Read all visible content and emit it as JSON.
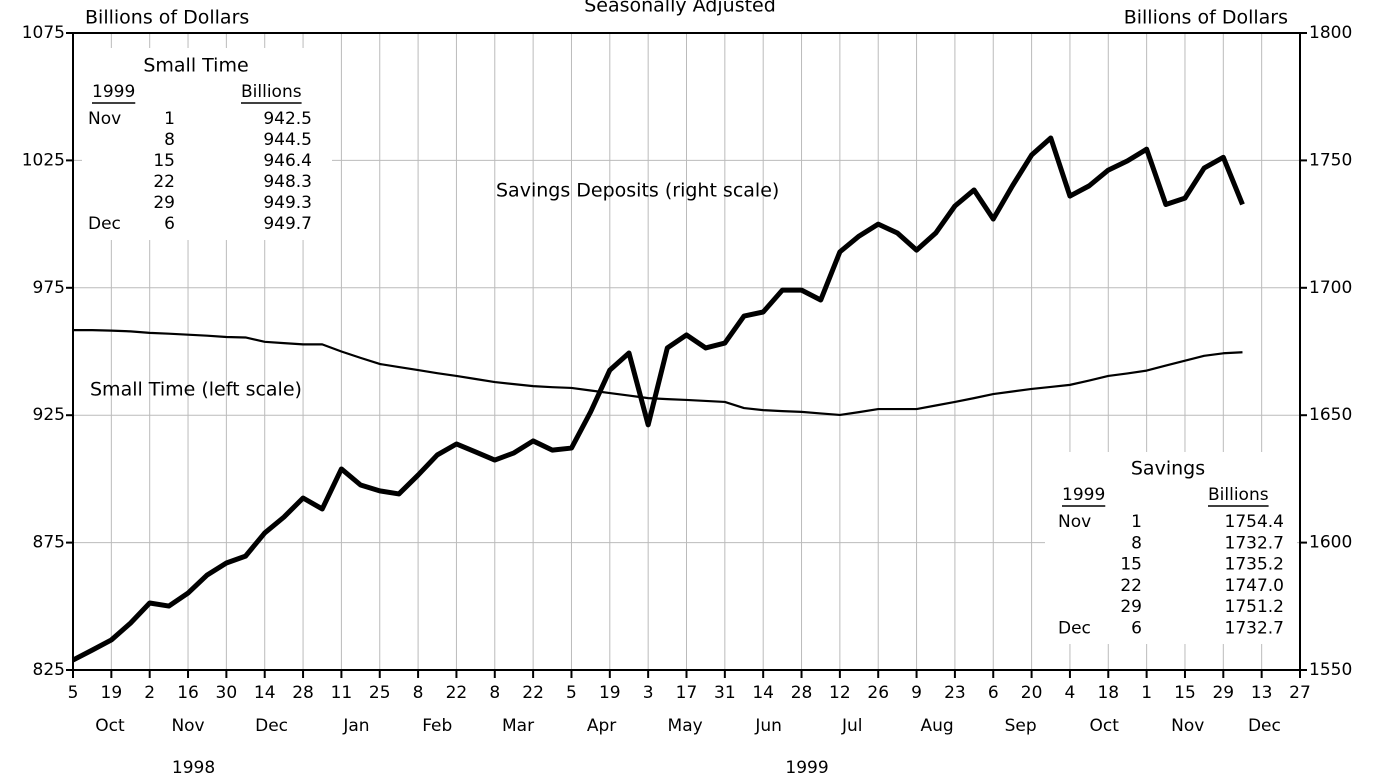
{
  "chart_data": {
    "type": "line",
    "subtitle": "Seasonally Adjusted",
    "y_label": "Billions of Dollars",
    "y2_label": "Billions of Dollars",
    "annotations": [
      "Savings Deposits (right scale)",
      "Small Time (left scale)"
    ],
    "xlim": [
      "1998-10-05",
      "1999-12-27"
    ],
    "xticks": [
      {
        "value": "1998-10-05",
        "label": "5"
      },
      {
        "value": "1998-10-19",
        "label": "19"
      },
      {
        "value": "1998-11-02",
        "label": "2"
      },
      {
        "value": "1998-11-16",
        "label": "16"
      },
      {
        "value": "1998-11-30",
        "label": "30"
      },
      {
        "value": "1998-12-14",
        "label": "14"
      },
      {
        "value": "1998-12-28",
        "label": "28"
      },
      {
        "value": "1999-01-11",
        "label": "11"
      },
      {
        "value": "1999-01-25",
        "label": "25"
      },
      {
        "value": "1999-02-08",
        "label": "8"
      },
      {
        "value": "1999-02-22",
        "label": "22"
      },
      {
        "value": "1999-03-08",
        "label": "8"
      },
      {
        "value": "1999-03-22",
        "label": "22"
      },
      {
        "value": "1999-04-05",
        "label": "5"
      },
      {
        "value": "1999-04-19",
        "label": "19"
      },
      {
        "value": "1999-05-03",
        "label": "3"
      },
      {
        "value": "1999-05-17",
        "label": "17"
      },
      {
        "value": "1999-05-31",
        "label": "31"
      },
      {
        "value": "1999-06-14",
        "label": "14"
      },
      {
        "value": "1999-06-28",
        "label": "28"
      },
      {
        "value": "1999-07-12",
        "label": "12"
      },
      {
        "value": "1999-07-26",
        "label": "26"
      },
      {
        "value": "1999-08-09",
        "label": "9"
      },
      {
        "value": "1999-08-23",
        "label": "23"
      },
      {
        "value": "1999-09-06",
        "label": "6"
      },
      {
        "value": "1999-09-20",
        "label": "20"
      },
      {
        "value": "1999-10-04",
        "label": "4"
      },
      {
        "value": "1999-10-18",
        "label": "18"
      },
      {
        "value": "1999-11-01",
        "label": "1"
      },
      {
        "value": "1999-11-15",
        "label": "15"
      },
      {
        "value": "1999-11-29",
        "label": "29"
      },
      {
        "value": "1999-12-13",
        "label": "13"
      },
      {
        "value": "1999-12-27",
        "label": "27"
      }
    ],
    "x_months": [
      {
        "value": "1998-10",
        "label": "Oct"
      },
      {
        "value": "1998-11",
        "label": "Nov"
      },
      {
        "value": "1998-12",
        "label": "Dec"
      },
      {
        "value": "1999-01",
        "label": "Jan"
      },
      {
        "value": "1999-02",
        "label": "Feb"
      },
      {
        "value": "1999-03",
        "label": "Mar"
      },
      {
        "value": "1999-04",
        "label": "Apr"
      },
      {
        "value": "1999-05",
        "label": "May"
      },
      {
        "value": "1999-06",
        "label": "Jun"
      },
      {
        "value": "1999-07",
        "label": "Jul"
      },
      {
        "value": "1999-08",
        "label": "Aug"
      },
      {
        "value": "1999-09",
        "label": "Sep"
      },
      {
        "value": "1999-10",
        "label": "Oct"
      },
      {
        "value": "1999-11",
        "label": "Nov"
      },
      {
        "value": "1999-12",
        "label": "Dec"
      }
    ],
    "x_years": [
      1998,
      1999
    ],
    "ylim": [
      825,
      1075
    ],
    "yticks": [
      825,
      875,
      925,
      975,
      1025,
      1075
    ],
    "y2lim": [
      1550,
      1800
    ],
    "y2ticks": [
      1550,
      1600,
      1650,
      1700,
      1750,
      1800
    ],
    "grid": true,
    "x": [
      "1998-10-05",
      "1998-10-12",
      "1998-10-19",
      "1998-10-26",
      "1998-11-02",
      "1998-11-09",
      "1998-11-16",
      "1998-11-23",
      "1998-11-30",
      "1998-12-07",
      "1998-12-14",
      "1998-12-21",
      "1998-12-28",
      "1999-01-04",
      "1999-01-11",
      "1999-01-18",
      "1999-01-25",
      "1999-02-01",
      "1999-02-08",
      "1999-02-15",
      "1999-02-22",
      "1999-03-01",
      "1999-03-08",
      "1999-03-15",
      "1999-03-22",
      "1999-03-29",
      "1999-04-05",
      "1999-04-12",
      "1999-04-19",
      "1999-04-26",
      "1999-05-03",
      "1999-05-10",
      "1999-05-17",
      "1999-05-24",
      "1999-05-31",
      "1999-06-07",
      "1999-06-14",
      "1999-06-21",
      "1999-06-28",
      "1999-07-05",
      "1999-07-12",
      "1999-07-19",
      "1999-07-26",
      "1999-08-02",
      "1999-08-09",
      "1999-08-16",
      "1999-08-23",
      "1999-08-30",
      "1999-09-06",
      "1999-09-13",
      "1999-09-20",
      "1999-09-27",
      "1999-10-04",
      "1999-10-11",
      "1999-10-18",
      "1999-10-25",
      "1999-11-01",
      "1999-11-08",
      "1999-11-15",
      "1999-11-22",
      "1999-11-29",
      "1999-12-06"
    ],
    "series": [
      {
        "name": "Small Time",
        "color": "#000000",
        "axis": "y",
        "values": [
          958.4,
          958.4,
          958.2,
          957.9,
          957.3,
          957.0,
          956.6,
          956.2,
          955.7,
          955.5,
          953.8,
          953.3,
          952.8,
          952.8,
          950.0,
          947.5,
          945.1,
          943.9,
          942.7,
          941.5,
          940.4,
          939.2,
          938.0,
          937.2,
          936.4,
          936.0,
          935.7,
          934.7,
          933.7,
          932.7,
          931.7,
          931.3,
          931.0,
          930.6,
          930.2,
          927.8,
          927.0,
          926.6,
          926.3,
          925.7,
          925.1,
          926.2,
          927.4,
          927.4,
          927.4,
          928.8,
          930.2,
          931.7,
          933.3,
          934.3,
          935.3,
          936.1,
          936.9,
          938.6,
          940.4,
          941.4,
          942.5,
          944.5,
          946.4,
          948.3,
          949.3,
          949.7
        ]
      },
      {
        "name": "Savings",
        "color": "#000000",
        "axis": "y2",
        "values": [
          1553.9,
          1557.8,
          1561.8,
          1568.4,
          1576.3,
          1575.1,
          1580.2,
          1587.3,
          1592.0,
          1594.7,
          1603.8,
          1610.0,
          1617.5,
          1613.2,
          1628.9,
          1622.6,
          1620.3,
          1619.1,
          1626.5,
          1634.4,
          1638.7,
          1635.6,
          1632.4,
          1635.2,
          1639.9,
          1636.3,
          1637.1,
          1651.3,
          1667.7,
          1674.4,
          1646.2,
          1676.4,
          1681.5,
          1676.4,
          1678.3,
          1688.9,
          1690.5,
          1699.1,
          1699.1,
          1695.2,
          1714.1,
          1720.3,
          1725.0,
          1721.5,
          1714.8,
          1721.5,
          1732.1,
          1738.4,
          1727.0,
          1740.0,
          1752.1,
          1758.8,
          1736.0,
          1740.0,
          1746.2,
          1749.8,
          1754.4,
          1732.7,
          1735.2,
          1747.0,
          1751.2,
          1732.7
        ]
      }
    ],
    "tables": [
      {
        "title": "Small Time",
        "headers": [
          "1999",
          "Billions"
        ],
        "rows": [
          [
            "Nov",
            "1",
            "942.5"
          ],
          [
            "8",
            "944.5"
          ],
          [
            "15",
            "946.4"
          ],
          [
            "22",
            "948.3"
          ],
          [
            "29",
            "949.3"
          ],
          [
            "Dec",
            "6",
            "949.7"
          ]
        ]
      },
      {
        "title": "Savings",
        "headers": [
          "1999",
          "Billions"
        ],
        "rows": [
          [
            "Nov",
            "1",
            "1754.4"
          ],
          [
            "8",
            "1732.7"
          ],
          [
            "15",
            "1735.2"
          ],
          [
            "22",
            "1747.0"
          ],
          [
            "29",
            "1751.2"
          ],
          [
            "Dec",
            "6",
            "1732.7"
          ]
        ]
      }
    ]
  }
}
